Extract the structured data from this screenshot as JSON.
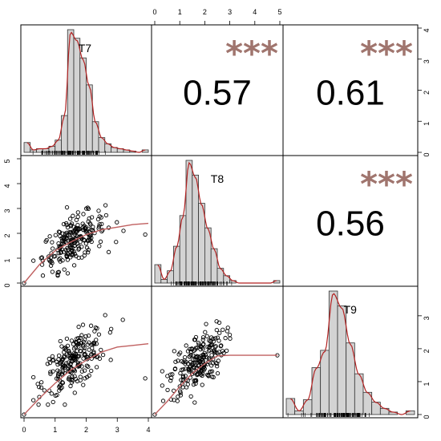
{
  "chart_data": {
    "type": "scatter",
    "title": "",
    "variables": [
      "T7",
      "T8",
      "T9"
    ],
    "layout": "pairs-panel 3x3: histograms with density curves on diagonal, scatter plots with loess smooth in lower triangle, correlation coefficients with significance stars in upper triangle",
    "axis_ticks": {
      "top": {
        "values": [
          0,
          1,
          2,
          3,
          4,
          5
        ],
        "labels": [
          "0",
          "1",
          "2",
          "3",
          "4",
          "5"
        ]
      },
      "bottom": {
        "values": [
          0,
          1,
          2,
          3,
          4
        ],
        "labels": [
          "0",
          "1",
          "2",
          "3",
          "4"
        ]
      },
      "left": {
        "values": [
          0,
          1,
          2,
          3,
          4,
          5
        ],
        "labels": [
          "0",
          "1",
          "2",
          "3",
          "4",
          "5"
        ]
      },
      "right_top": {
        "values": [
          0,
          1,
          2,
          3,
          4
        ],
        "labels": [
          "0",
          "1",
          "2",
          "3",
          "4"
        ]
      },
      "right_bottom": {
        "values": [
          0,
          1,
          2,
          3
        ],
        "labels": [
          "0",
          "1",
          "2",
          "3"
        ]
      }
    },
    "correlations": [
      {
        "row": 1,
        "col": 2,
        "pair": [
          "T7",
          "T8"
        ],
        "value": "0.57",
        "stars": "***"
      },
      {
        "row": 1,
        "col": 3,
        "pair": [
          "T7",
          "T9"
        ],
        "value": "0.61",
        "stars": "***"
      },
      {
        "row": 2,
        "col": 3,
        "pair": [
          "T8",
          "T9"
        ],
        "value": "0.56",
        "stars": "***"
      }
    ],
    "histograms": [
      {
        "variable": "T7",
        "xlim": [
          0,
          4
        ],
        "bin_width": 0.2,
        "counts": [
          0.08,
          0.02,
          0.03,
          0.03,
          0.05,
          0.1,
          0.3,
          1.0,
          0.93,
          0.77,
          0.55,
          0.25,
          0.12,
          0.07,
          0.04,
          0.03,
          0.02,
          0.01,
          0.0,
          0.02
        ]
      },
      {
        "variable": "T8",
        "xlim": [
          0,
          5
        ],
        "bin_width": 0.25,
        "counts": [
          0.15,
          0.03,
          0.1,
          0.3,
          0.55,
          1.0,
          0.88,
          0.65,
          0.45,
          0.28,
          0.12,
          0.06,
          0.02,
          0.0,
          0.0,
          0.0,
          0.0,
          0.0,
          0.0,
          0.02
        ]
      },
      {
        "variable": "T9",
        "xlim": [
          0,
          3.8
        ],
        "bin_width": 0.25,
        "counts": [
          0.13,
          0.03,
          0.12,
          0.38,
          0.52,
          1.0,
          0.88,
          0.58,
          0.33,
          0.18,
          0.1,
          0.05,
          0.02,
          0.0,
          0.03
        ]
      }
    ],
    "scatter_summary": [
      {
        "x": "T7",
        "y": "T8",
        "n": 220,
        "outliers": [
          [
            0,
            0
          ],
          [
            3.9,
            1.95
          ],
          [
            3.2,
            2.1
          ]
        ],
        "smooth": [
          [
            0,
            0
          ],
          [
            0.5,
            0.75
          ],
          [
            1,
            1.3
          ],
          [
            1.5,
            1.65
          ],
          [
            2,
            1.95
          ],
          [
            2.5,
            2.15
          ],
          [
            3,
            2.25
          ],
          [
            3.5,
            2.35
          ],
          [
            4,
            2.4
          ]
        ]
      },
      {
        "x": "T7",
        "y": "T9",
        "n": 220,
        "outliers": [
          [
            0,
            0
          ],
          [
            3.9,
            1.1
          ]
        ],
        "smooth": [
          [
            0,
            0
          ],
          [
            0.5,
            0.5
          ],
          [
            1,
            0.95
          ],
          [
            1.5,
            1.35
          ],
          [
            2,
            1.65
          ],
          [
            2.5,
            1.9
          ],
          [
            3,
            2.05
          ],
          [
            3.5,
            2.1
          ],
          [
            4,
            2.15
          ]
        ]
      },
      {
        "x": "T8",
        "y": "T9",
        "n": 220,
        "outliers": [
          [
            0,
            0
          ],
          [
            4.9,
            1.8
          ]
        ],
        "smooth": [
          [
            0,
            0
          ],
          [
            0.5,
            0.4
          ],
          [
            1,
            0.85
          ],
          [
            1.5,
            1.25
          ],
          [
            2,
            1.55
          ],
          [
            2.5,
            1.78
          ],
          [
            3,
            1.8
          ],
          [
            4,
            1.8
          ],
          [
            4.9,
            1.8
          ]
        ]
      }
    ],
    "colors": {
      "bars": "#d3d3d3",
      "density": "#b22222",
      "smooth": "#c06060",
      "stars": "#a0756e",
      "points": "#000000"
    }
  }
}
